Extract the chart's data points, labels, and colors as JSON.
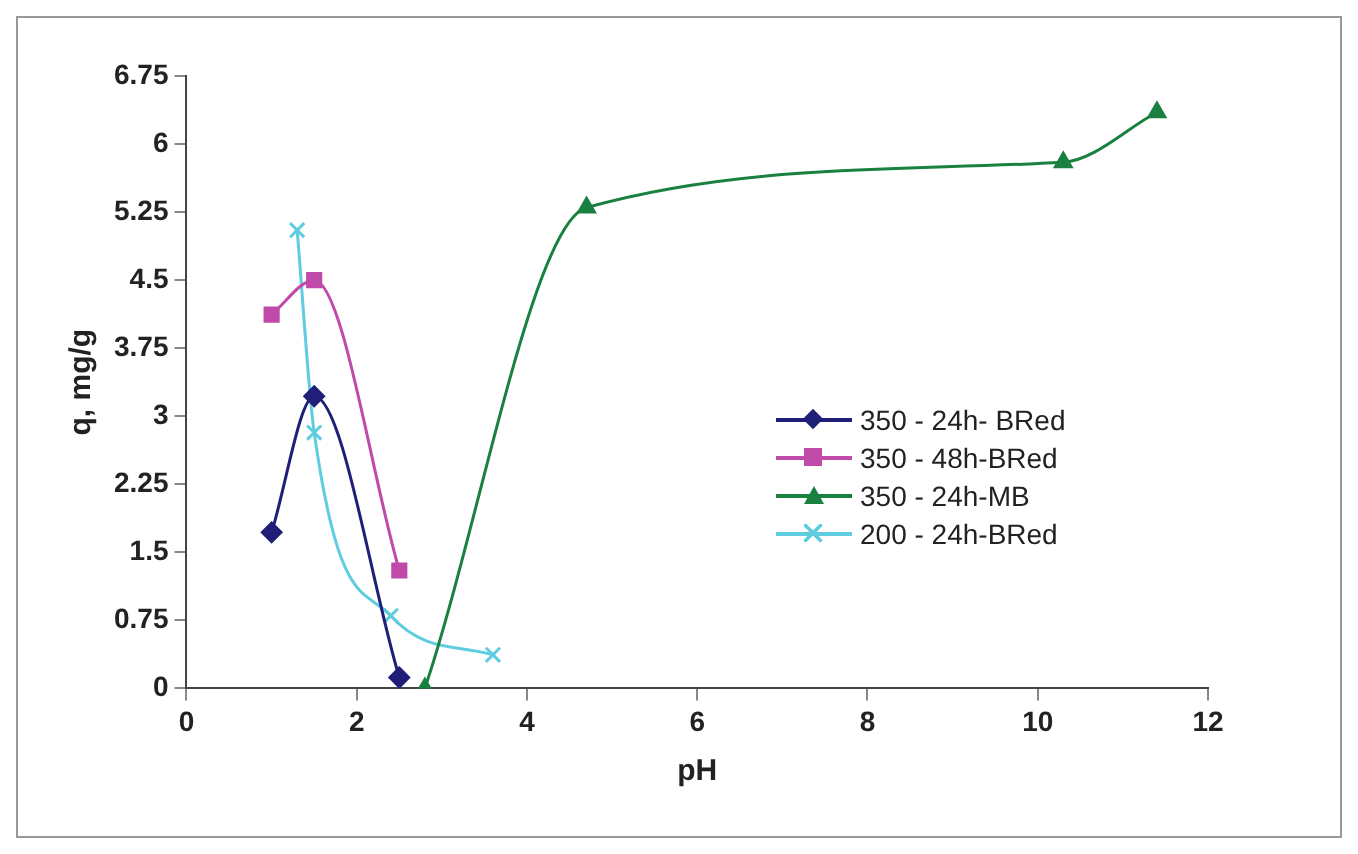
{
  "chart_data": {
    "type": "line",
    "xlabel": "pH",
    "ylabel": "q, mg/g",
    "xlim": [
      0,
      12
    ],
    "xticks": [
      0,
      2,
      4,
      6,
      8,
      10,
      12
    ],
    "ylim": [
      0,
      6.75
    ],
    "yticks": [
      0,
      0.75,
      1.5,
      2.25,
      3,
      3.75,
      4.5,
      5.25,
      6,
      6.75
    ],
    "grid": false,
    "legend": "right",
    "series": [
      {
        "name": "350 - 24h- BRed",
        "color": "#1f1f78",
        "marker": "diamond",
        "x": [
          1,
          1.5,
          2.5
        ],
        "values": [
          1.72,
          3.22,
          0.12
        ]
      },
      {
        "name": "350 - 48h-BRed",
        "color": "#c04aa8",
        "marker": "square",
        "x": [
          1,
          1.5,
          2.5
        ],
        "values": [
          4.12,
          4.5,
          1.3
        ]
      },
      {
        "name": "350 - 24h-MB",
        "color": "#1a8040",
        "marker": "triangle",
        "x": [
          2.8,
          4.7,
          10.3,
          11.4
        ],
        "values": [
          0,
          5.3,
          5.8,
          6.35
        ]
      },
      {
        "name": "200 - 24h-BRed",
        "color": "#5fcde0",
        "marker": "cross",
        "x": [
          1.3,
          1.5,
          2.4,
          3.6
        ],
        "values": [
          5.05,
          2.82,
          0.8,
          0.37
        ]
      }
    ]
  }
}
